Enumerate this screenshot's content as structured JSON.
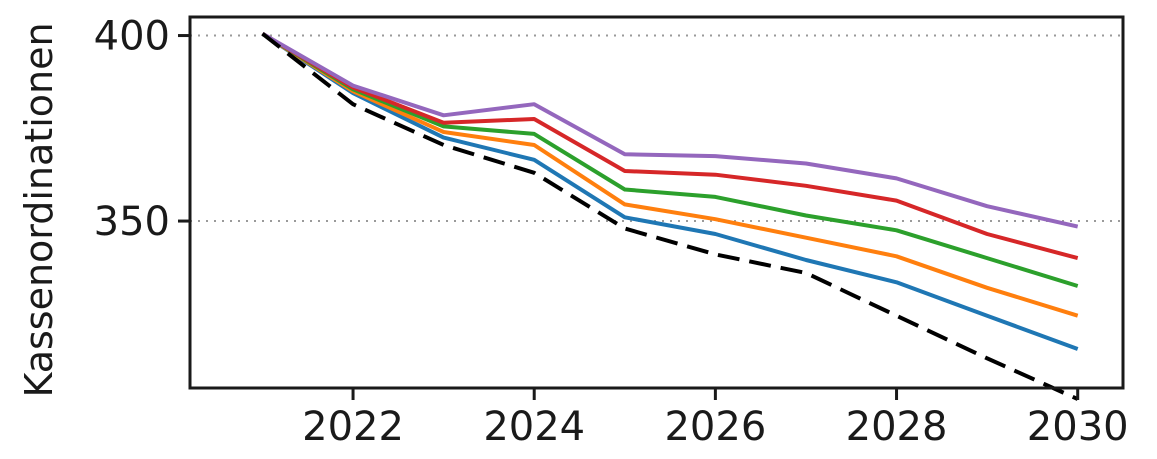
{
  "chart_data": {
    "type": "line",
    "title": "",
    "xlabel": "",
    "ylabel": "Kassenordinationen",
    "x": [
      2021,
      2022,
      2023,
      2024,
      2025,
      2026,
      2027,
      2028,
      2029,
      2030
    ],
    "xlim": [
      2020.2,
      2030.5
    ],
    "ylim": [
      305,
      405
    ],
    "xticks": [
      2022,
      2024,
      2026,
      2028,
      2030
    ],
    "xtick_labels": [
      "2022",
      "2024",
      "2026",
      "2028",
      "2030"
    ],
    "yticks": [
      350,
      400
    ],
    "ytick_labels": [
      "350",
      "400"
    ],
    "grid": "y-dotted",
    "series": [
      {
        "color": "#000000",
        "dashed": true,
        "values": [
          400.5,
          381.5,
          370.5,
          363,
          348,
          341,
          336,
          324.5,
          313,
          302
        ]
      },
      {
        "color": "#1f77b4",
        "dashed": false,
        "values": [
          400.5,
          384.5,
          372.5,
          366.5,
          351,
          346.5,
          339.5,
          333.5,
          324.5,
          315.5
        ]
      },
      {
        "color": "#ff7f0e",
        "dashed": false,
        "values": [
          400.5,
          385,
          374,
          370.5,
          354.5,
          350.5,
          345.5,
          340.5,
          332,
          324.5
        ]
      },
      {
        "color": "#2ca02c",
        "dashed": false,
        "values": [
          400.5,
          385.5,
          375.5,
          373.5,
          358.5,
          356.5,
          351.5,
          347.5,
          340,
          332.5
        ]
      },
      {
        "color": "#d62728",
        "dashed": false,
        "values": [
          400.5,
          386,
          376.5,
          377.5,
          363.5,
          362.5,
          359.5,
          355.5,
          346.5,
          340
        ]
      },
      {
        "color": "#9467bd",
        "dashed": false,
        "values": [
          400.5,
          386.5,
          378.5,
          381.5,
          368,
          367.5,
          365.5,
          361.5,
          354,
          348.5
        ]
      }
    ]
  }
}
